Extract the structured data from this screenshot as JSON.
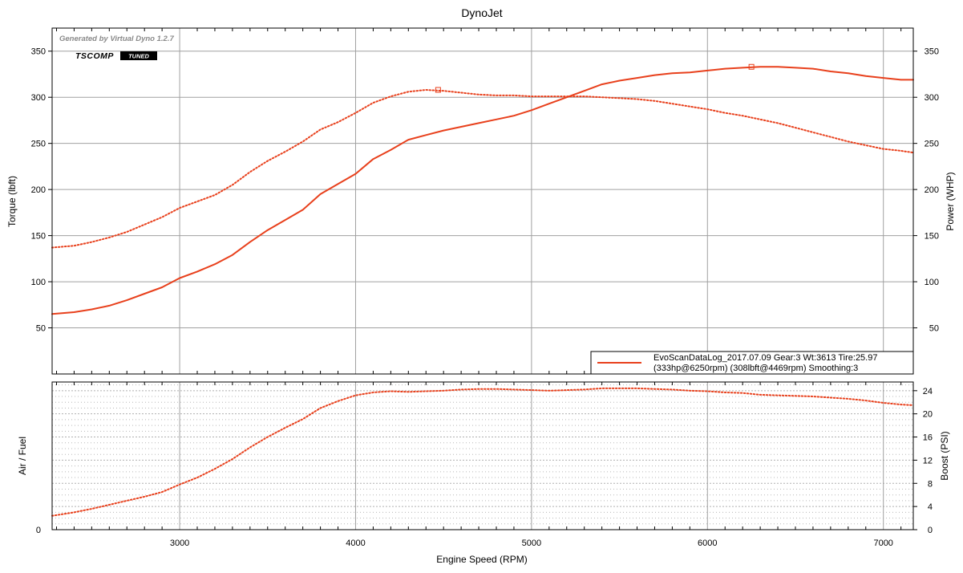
{
  "chart_data": {
    "type": "line",
    "title": "DynoJet",
    "xlabel": "Engine Speed (RPM)",
    "xlim": [
      2275,
      7170
    ],
    "x_ticks": [
      3000,
      4000,
      5000,
      6000,
      7000
    ],
    "watermark": "Generated by Virtual Dyno 1.2.7",
    "logo": {
      "main": "TSCOMP",
      "badge": "TUNED"
    },
    "colors": {
      "series": "#e8401c",
      "grid": "#a0a0a0",
      "frame": "#000000"
    },
    "panels": [
      {
        "name": "power-torque",
        "ylabel_left": "Torque (lbft)",
        "ylabel_right": "Power (WHP)",
        "ylim": [
          0,
          375
        ],
        "y_ticks": [
          50,
          100,
          150,
          200,
          250,
          300,
          350
        ],
        "grid": true,
        "legend": {
          "placement": "bottom-right",
          "line1": "EvoScanDataLog_2017.07.09 Gear:3 Wt:3613 Tire:25.97",
          "line2": "(333hp@6250rpm) (308lbft@4469rpm) Smoothing:3"
        },
        "series": [
          {
            "name": "Power (WHP)",
            "style": "solid",
            "peak": {
              "x": 6250,
              "y": 333
            },
            "x": [
              2275,
              2400,
              2500,
              2600,
              2700,
              2800,
              2900,
              3000,
              3100,
              3200,
              3300,
              3400,
              3500,
              3600,
              3700,
              3800,
              3900,
              4000,
              4100,
              4200,
              4300,
              4400,
              4500,
              4600,
              4700,
              4800,
              4900,
              5000,
              5100,
              5200,
              5300,
              5400,
              5500,
              5600,
              5700,
              5800,
              5900,
              6000,
              6100,
              6200,
              6300,
              6400,
              6500,
              6600,
              6700,
              6800,
              6900,
              7000,
              7100,
              7170
            ],
            "values": [
              65,
              67,
              70,
              74,
              80,
              87,
              94,
              104,
              111,
              119,
              129,
              143,
              156,
              167,
              178,
              195,
              206,
              217,
              233,
              243,
              254,
              259,
              264,
              268,
              272,
              276,
              280,
              286,
              293,
              300,
              307,
              314,
              318,
              321,
              324,
              326,
              327,
              329,
              331,
              332,
              333,
              333,
              332,
              331,
              328,
              326,
              323,
              321,
              319,
              319
            ]
          },
          {
            "name": "Torque (lbft)",
            "style": "dotted",
            "peak": {
              "x": 4469,
              "y": 308
            },
            "x": [
              2275,
              2400,
              2500,
              2600,
              2700,
              2800,
              2900,
              3000,
              3100,
              3200,
              3300,
              3400,
              3500,
              3600,
              3700,
              3800,
              3900,
              4000,
              4100,
              4200,
              4300,
              4400,
              4500,
              4600,
              4700,
              4800,
              4900,
              5000,
              5100,
              5200,
              5300,
              5400,
              5500,
              5600,
              5700,
              5800,
              5900,
              6000,
              6100,
              6200,
              6300,
              6400,
              6500,
              6600,
              6700,
              6800,
              6900,
              7000,
              7100,
              7170
            ],
            "values": [
              137,
              139,
              143,
              148,
              154,
              162,
              170,
              180,
              187,
              194,
              205,
              219,
              231,
              241,
              252,
              265,
              273,
              283,
              294,
              301,
              306,
              308,
              307,
              305,
              303,
              302,
              302,
              301,
              301,
              301,
              301,
              300,
              299,
              298,
              296,
              293,
              290,
              287,
              283,
              280,
              276,
              272,
              267,
              262,
              257,
              252,
              248,
              244,
              242,
              240
            ]
          }
        ]
      },
      {
        "name": "boost-afr",
        "ylabel_left": "Air / Fuel",
        "ylabel_right": "Boost (PSI)",
        "ylim": [
          0,
          25.5
        ],
        "y_left_ticks": [
          0
        ],
        "y_ticks": [
          0,
          4,
          8,
          12,
          16,
          20,
          24
        ],
        "grid": true,
        "series": [
          {
            "name": "Boost (PSI)",
            "style": "dotted",
            "x": [
              2275,
              2400,
              2500,
              2600,
              2700,
              2800,
              2900,
              3000,
              3100,
              3200,
              3300,
              3400,
              3500,
              3600,
              3700,
              3800,
              3900,
              4000,
              4100,
              4200,
              4300,
              4400,
              4500,
              4600,
              4700,
              4800,
              4900,
              5000,
              5100,
              5200,
              5300,
              5400,
              5500,
              5600,
              5700,
              5800,
              5900,
              6000,
              6100,
              6200,
              6300,
              6400,
              6500,
              6600,
              6700,
              6800,
              6900,
              7000,
              7100,
              7170
            ],
            "values": [
              2.4,
              3.0,
              3.6,
              4.3,
              5.0,
              5.7,
              6.5,
              7.8,
              9.0,
              10.5,
              12.2,
              14.2,
              16.0,
              17.6,
              19.1,
              21.0,
              22.2,
              23.2,
              23.7,
              23.9,
              23.8,
              23.9,
              24.0,
              24.2,
              24.3,
              24.3,
              24.2,
              24.1,
              24.0,
              24.1,
              24.2,
              24.4,
              24.4,
              24.4,
              24.3,
              24.2,
              24.0,
              23.9,
              23.7,
              23.6,
              23.3,
              23.2,
              23.1,
              23.0,
              22.8,
              22.6,
              22.3,
              21.9,
              21.6,
              21.5
            ]
          }
        ]
      }
    ]
  }
}
